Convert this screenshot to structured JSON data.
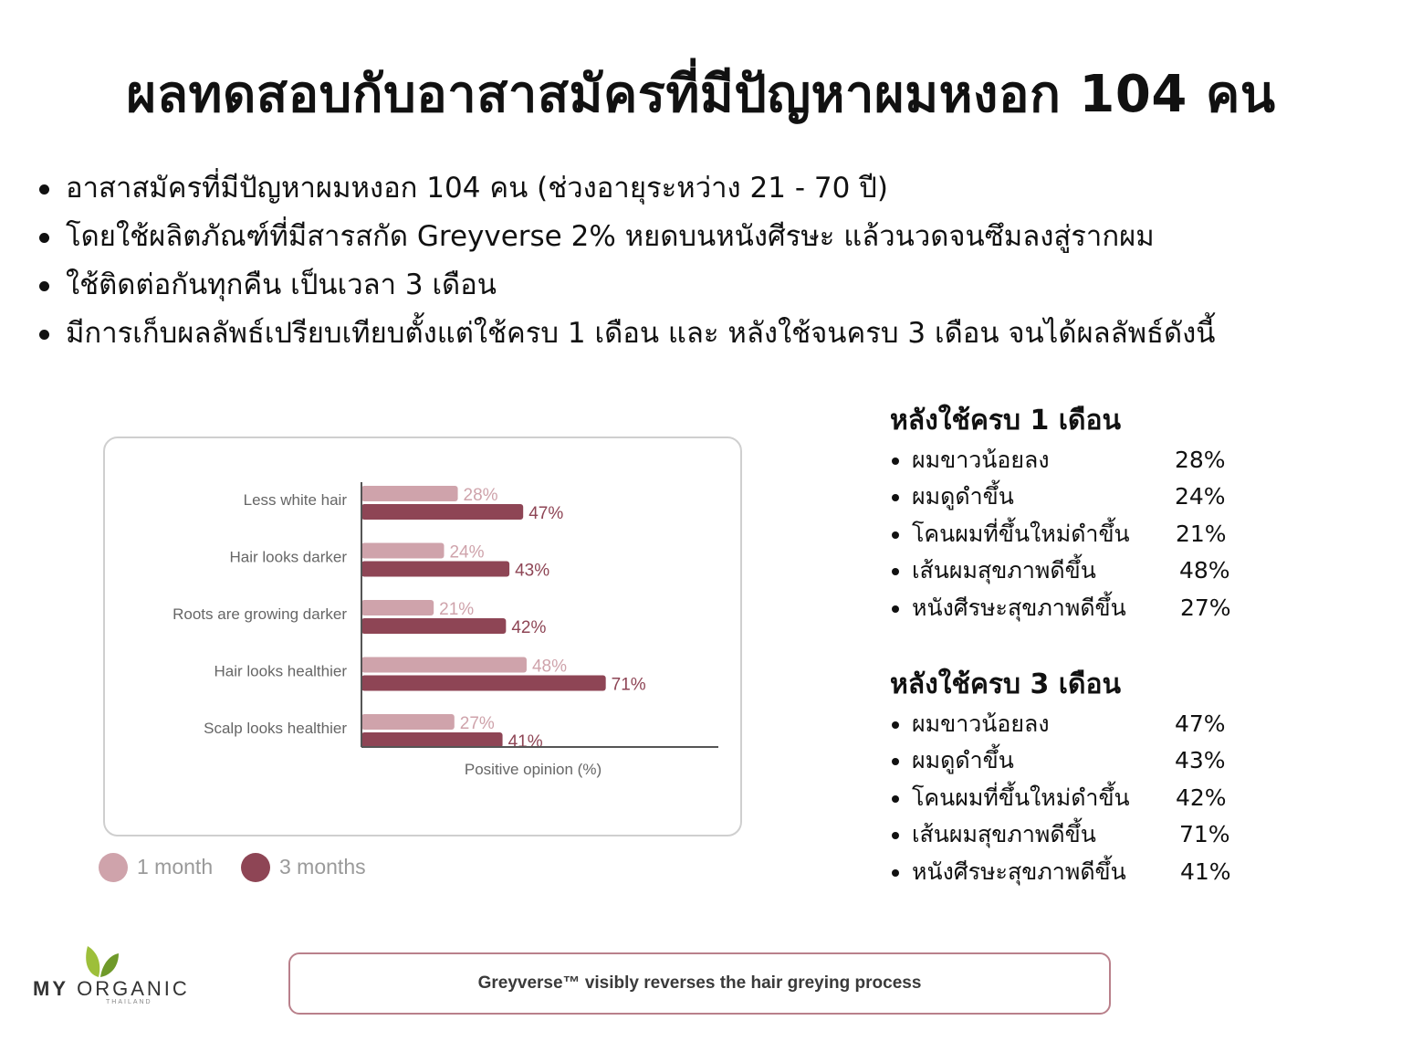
{
  "title": "ผลทดสอบกับอาสาสมัครที่มีปัญหาผมหงอก 104 คน",
  "intro_bullets": [
    "อาสาสมัครที่มีปัญหาผมหงอก 104 คน (ช่วงอายุระหว่าง 21 - 70 ปี)",
    "โดยใช้ผลิตภัณฑ์ที่มีสารสกัด Greyverse 2% หยดบนหนังศีรษะ แล้วนวดจนซึมลงสู่รากผม",
    "ใช้ติดต่อกันทุกคืน เป็นเวลา 3 เดือน",
    "มีการเก็บผลลัพธ์เปรียบเทียบตั้งแต่ใช้ครบ 1 เดือน และ หลังใช้จนครบ 3 เดือน จนได้ผลลัพธ์ดังนี้"
  ],
  "chart_data": {
    "type": "bar",
    "orientation": "horizontal",
    "categories": [
      "Less white hair",
      "Hair looks darker",
      "Roots are growing darker",
      "Hair looks healthier",
      "Scalp looks healthier"
    ],
    "series": [
      {
        "name": "1 month",
        "values": [
          28,
          24,
          21,
          48,
          27
        ],
        "labels": [
          "28%",
          "24%",
          "21%",
          "48%",
          "27%"
        ],
        "color": "#cfa3ab"
      },
      {
        "name": "3 months",
        "values": [
          47,
          43,
          42,
          71,
          41
        ],
        "labels": [
          "47%",
          "43%",
          "42%",
          "71%",
          "41%"
        ],
        "color": "#8e4555"
      }
    ],
    "xlabel": "Positive opinion (%)",
    "xlim": [
      0,
      100
    ],
    "grid": false,
    "legend_position": "bottom-left"
  },
  "results": [
    {
      "heading": "หลังใช้ครบ 1 เดือน",
      "items": [
        {
          "label": "ผมขาวน้อยลง",
          "value": "28%"
        },
        {
          "label": "ผมดูดำขึ้น",
          "value": "24%"
        },
        {
          "label": "โคนผมที่ขึ้นใหม่ดำขึ้น",
          "value": "21%"
        },
        {
          "label": "เส้นผมสุขภาพดีขึ้น",
          "value": "48%"
        },
        {
          "label": "หนังศีรษะสุขภาพดีขึ้น",
          "value": "27%"
        }
      ]
    },
    {
      "heading": "หลังใช้ครบ 3 เดือน",
      "items": [
        {
          "label": "ผมขาวน้อยลง",
          "value": "47%"
        },
        {
          "label": "ผมดูดำขึ้น",
          "value": "43%"
        },
        {
          "label": "โคนผมที่ขึ้นใหม่ดำขึ้น",
          "value": "42%"
        },
        {
          "label": "เส้นผมสุขภาพดีขึ้น",
          "value": "71%"
        },
        {
          "label": "หนังศีรษะสุขภาพดีขึ้น",
          "value": "41%"
        }
      ]
    }
  ],
  "logo": {
    "brand_bold": "MY",
    "brand_rest": "ORGANIC",
    "sub": "THAILAND",
    "icon": "leaf-icon",
    "leaf_colors": [
      "#9dbf3a",
      "#6f9a2a"
    ]
  },
  "tagline": "Greyverse™ visibly reverses the hair greying process",
  "colors": {
    "frame_border": "#cfcfcf",
    "tagline_border": "#b9808b",
    "axis": "#555555"
  }
}
